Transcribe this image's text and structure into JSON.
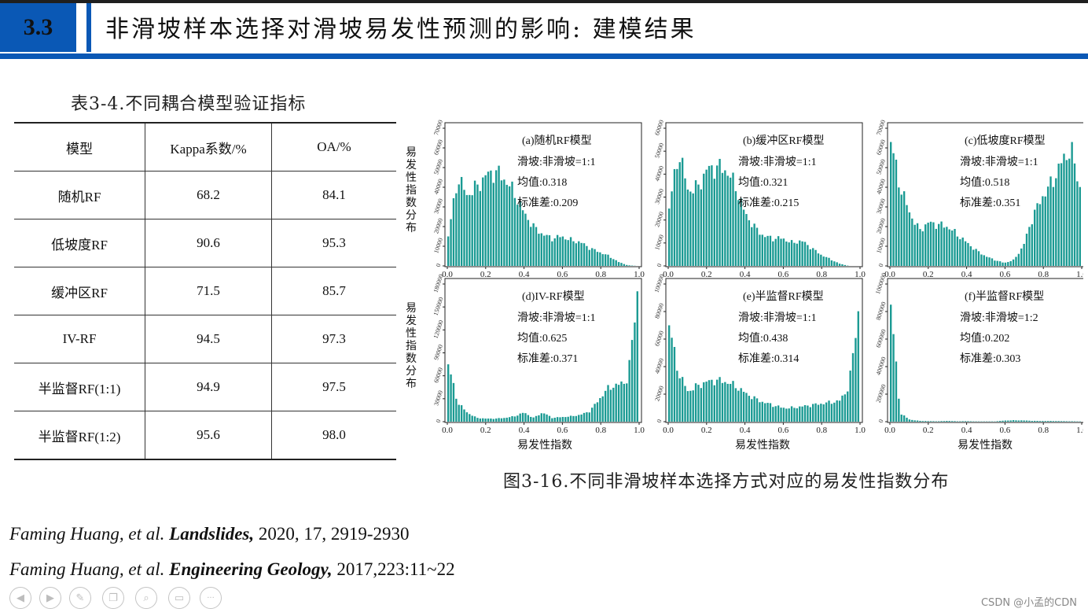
{
  "header": {
    "section_number": "3.3",
    "title": "非滑坡样本选择对滑坡易发性预测的影响: 建模结果"
  },
  "table": {
    "caption": "表3-4.不同耦合模型验证指标",
    "headers": [
      "模型",
      "Kappa系数/%",
      "OA/%"
    ],
    "rows": [
      [
        "随机RF",
        "68.2",
        "84.1"
      ],
      [
        "低坡度RF",
        "90.6",
        "95.3"
      ],
      [
        "缓冲区RF",
        "71.5",
        "85.7"
      ],
      [
        "IV-RF",
        "94.5",
        "97.3"
      ],
      [
        "半监督RF(1:1)",
        "94.9",
        "97.5"
      ],
      [
        "半监督RF(1:2)",
        "95.6",
        "98.0"
      ]
    ]
  },
  "figure": {
    "caption": "图3-16.不同非滑坡样本选择方式对应的易发性指数分布",
    "xlabel": "易发性指数",
    "ylabel": "易发性指数分布",
    "bar_color": "#1a9a93"
  },
  "chart_data": [
    {
      "type": "bar",
      "panel": "a",
      "label": "(a)随机RF模型",
      "ratio": "滑坡:非滑坡=1:1",
      "mean": "均值:0.318",
      "std": "标准差:0.209",
      "ylim": [
        0,
        70000
      ],
      "yticks": [
        "0",
        "10000",
        "20000",
        "30000",
        "40000",
        "50000",
        "60000",
        "70000"
      ],
      "xticks": [
        "0.0",
        "0.2",
        "0.4",
        "0.6",
        "0.8",
        "1.0"
      ],
      "x": [
        0.0,
        0.05,
        0.1,
        0.15,
        0.2,
        0.25,
        0.3,
        0.35,
        0.4,
        0.45,
        0.5,
        0.55,
        0.6,
        0.65,
        0.7,
        0.75,
        0.8,
        0.85,
        0.9,
        0.95,
        1.0
      ],
      "values": [
        15000,
        45000,
        36000,
        40000,
        46000,
        48000,
        44000,
        37000,
        27000,
        20000,
        16000,
        14000,
        15000,
        13000,
        12000,
        9000,
        7000,
        5000,
        2000,
        300,
        0
      ]
    },
    {
      "type": "bar",
      "panel": "b",
      "label": "(b)缓冲区RF模型",
      "ratio": "滑坡:非滑坡=1:1",
      "mean": "均值:0.321",
      "std": "标准差:0.215",
      "ylim": [
        0,
        60000
      ],
      "yticks": [
        "0",
        "10000",
        "20000",
        "30000",
        "40000",
        "50000",
        "60000"
      ],
      "xticks": [
        "0.0",
        "0.2",
        "0.4",
        "0.6",
        "0.8",
        "1.0"
      ],
      "x": [
        0.0,
        0.05,
        0.1,
        0.15,
        0.2,
        0.25,
        0.3,
        0.35,
        0.4,
        0.45,
        0.5,
        0.55,
        0.6,
        0.65,
        0.7,
        0.75,
        0.8,
        0.85,
        0.9,
        0.95,
        1.0
      ],
      "values": [
        25000,
        50000,
        33000,
        34000,
        42000,
        43000,
        42000,
        35000,
        23000,
        17000,
        13000,
        12000,
        12000,
        10000,
        11000,
        8000,
        5000,
        3000,
        1000,
        0,
        0
      ]
    },
    {
      "type": "bar",
      "panel": "c",
      "label": "(c)低坡度RF模型",
      "ratio": "滑坡:非滑坡=1:1",
      "mean": "均值:0.518",
      "std": "标准差:0.351",
      "ylim": [
        0,
        70000
      ],
      "yticks": [
        "0",
        "10000",
        "20000",
        "30000",
        "40000",
        "50000",
        "60000",
        "70000"
      ],
      "xticks": [
        "0.0",
        "0.2",
        "0.4",
        "0.6",
        "0.8",
        "1.0"
      ],
      "x": [
        0.0,
        0.05,
        0.1,
        0.15,
        0.2,
        0.25,
        0.3,
        0.35,
        0.4,
        0.45,
        0.5,
        0.55,
        0.6,
        0.65,
        0.7,
        0.75,
        0.8,
        0.85,
        0.9,
        0.95,
        1.0
      ],
      "values": [
        63000,
        40000,
        27000,
        18000,
        22000,
        21000,
        20000,
        16000,
        12000,
        8000,
        5000,
        3000,
        1500,
        3000,
        10000,
        25000,
        35000,
        42000,
        52000,
        60000,
        40000
      ]
    },
    {
      "type": "bar",
      "panel": "d",
      "label": "(d)IV-RF模型",
      "ratio": "滑坡:非滑坡=1:1",
      "mean": "均值:0.625",
      "std": "标准差:0.371",
      "ylim": [
        0,
        180000
      ],
      "yticks": [
        "0",
        "30000",
        "60000",
        "90000",
        "120000",
        "150000",
        "180000"
      ],
      "xticks": [
        "0.0",
        "0.2",
        "0.4",
        "0.6",
        "0.8",
        "1.0"
      ],
      "x": [
        0.0,
        0.05,
        0.1,
        0.15,
        0.2,
        0.25,
        0.3,
        0.35,
        0.4,
        0.45,
        0.5,
        0.55,
        0.6,
        0.65,
        0.7,
        0.75,
        0.8,
        0.85,
        0.9,
        0.95,
        1.0
      ],
      "values": [
        75000,
        25000,
        12000,
        5000,
        4000,
        4000,
        5000,
        7000,
        12000,
        5000,
        12000,
        5000,
        6000,
        7000,
        9000,
        14000,
        30000,
        45000,
        48000,
        55000,
        170000
      ]
    },
    {
      "type": "bar",
      "panel": "e",
      "label": "(e)半监督RF模型",
      "ratio": "滑坡:非滑坡=1:1",
      "mean": "均值:0.438",
      "std": "标准差:0.314",
      "ylim": [
        0,
        100000
      ],
      "yticks": [
        "0",
        "20000",
        "40000",
        "60000",
        "80000",
        "100000"
      ],
      "xticks": [
        "0.0",
        "0.2",
        "0.4",
        "0.6",
        "0.8",
        "1.0"
      ],
      "x": [
        0.0,
        0.05,
        0.1,
        0.15,
        0.2,
        0.25,
        0.3,
        0.35,
        0.4,
        0.45,
        0.5,
        0.55,
        0.6,
        0.65,
        0.7,
        0.75,
        0.8,
        0.85,
        0.9,
        0.95,
        1.0
      ],
      "values": [
        70000,
        35000,
        22000,
        26000,
        29000,
        30000,
        29000,
        26000,
        21000,
        17000,
        14000,
        12000,
        10000,
        10000,
        11000,
        12000,
        13000,
        14000,
        15000,
        25000,
        80000
      ]
    },
    {
      "type": "bar",
      "panel": "f",
      "label": "(f)半监督RF模型",
      "ratio": "滑坡:非滑坡=1:2",
      "mean": "均值:0.202",
      "std": "标准差:0.303",
      "ylim": [
        0,
        1000000
      ],
      "yticks": [
        "0",
        "200000",
        "400000",
        "600000",
        "800000",
        "1000000"
      ],
      "xticks": [
        "0.0",
        "0.2",
        "0.4",
        "0.6",
        "0.8",
        "1.0"
      ],
      "x": [
        0.0,
        0.05,
        0.1,
        0.15,
        0.2,
        0.25,
        0.3,
        0.35,
        0.4,
        0.45,
        0.5,
        0.55,
        0.6,
        0.65,
        0.7,
        0.75,
        0.8,
        0.85,
        0.9,
        0.95,
        1.0
      ],
      "values": [
        850000,
        60000,
        15000,
        6000,
        4000,
        3000,
        6000,
        3000,
        4000,
        2000,
        2000,
        2000,
        8000,
        10000,
        9000,
        6000,
        5000,
        5000,
        4000,
        3000,
        2000
      ]
    }
  ],
  "references": [
    {
      "authors": "Faming Huang, et al.",
      "journal": "Landslides,",
      "details": "2020, 17, 2919-2930"
    },
    {
      "authors": "Faming Huang, et al.",
      "journal": "Engineering Geology,",
      "details": "2017,223:11~22"
    }
  ],
  "toolbar": {
    "icons": [
      "prev-icon",
      "next-icon",
      "pen-icon",
      "copy-icon",
      "zoom-icon",
      "slides-icon",
      "more-icon"
    ],
    "glyphs": [
      "◀",
      "▶",
      "✎",
      "❐",
      "⌕",
      "▭",
      "···"
    ]
  },
  "watermark": "CSDN @小孟的CDN"
}
